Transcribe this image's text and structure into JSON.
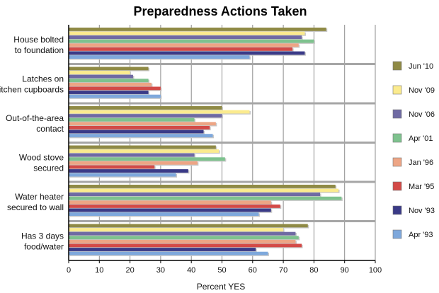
{
  "chart_data": {
    "type": "bar",
    "orientation": "horizontal",
    "title": "Preparedness Actions Taken",
    "xlabel": "Percent YES",
    "ylabel": "",
    "xlim": [
      0,
      100
    ],
    "xticks": [
      0,
      10,
      20,
      30,
      40,
      50,
      60,
      70,
      80,
      90,
      100
    ],
    "grid": "vertical",
    "legend_position": "right",
    "categories": [
      [
        "House bolted",
        "to foundation"
      ],
      [
        "Latches on",
        "kitchen cupboards"
      ],
      [
        "Out-of-the-area",
        "contact"
      ],
      [
        "Wood stove",
        "secured"
      ],
      [
        "Water heater",
        "secured to wall"
      ],
      [
        "Has 3 days",
        "food/water"
      ]
    ],
    "series": [
      {
        "name": "Jun '10",
        "color": "#8f8a45",
        "values": [
          84,
          26,
          50,
          48,
          87,
          78
        ]
      },
      {
        "name": "Nov '09",
        "color": "#fbeb8e",
        "values": [
          77,
          20,
          59,
          49,
          88,
          70
        ]
      },
      {
        "name": "Nov '06",
        "color": "#6f6aa3",
        "values": [
          76,
          21,
          50,
          41,
          82,
          74
        ]
      },
      {
        "name": "Apr '01",
        "color": "#7ec28e",
        "values": [
          80,
          26,
          41,
          51,
          89,
          75
        ]
      },
      {
        "name": "Jan '96",
        "color": "#eda585",
        "values": [
          75,
          27,
          48,
          42,
          66,
          74
        ]
      },
      {
        "name": "Mar '95",
        "color": "#d34a47",
        "values": [
          73,
          30,
          46,
          28,
          69,
          76
        ]
      },
      {
        "name": "Nov '93",
        "color": "#3a3a87",
        "values": [
          77,
          26,
          44,
          39,
          66,
          61
        ]
      },
      {
        "name": "Apr '93",
        "color": "#7ea8dc",
        "values": [
          59,
          30,
          47,
          35,
          62,
          65
        ]
      }
    ]
  }
}
